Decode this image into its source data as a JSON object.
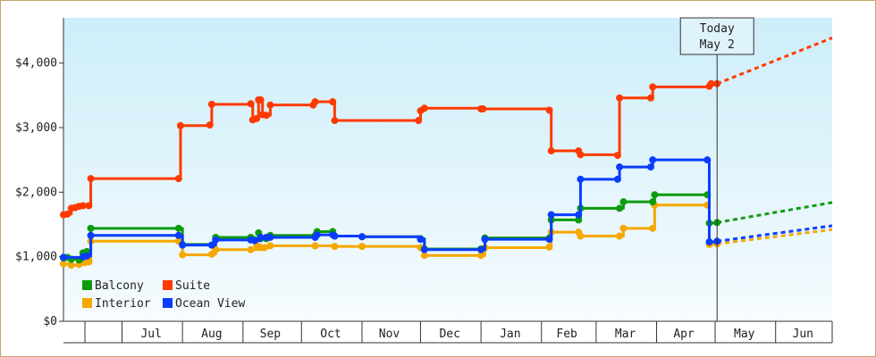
{
  "chart_data": {
    "type": "line",
    "step": true,
    "x_type": "date",
    "x_range": [
      "2024-06-01",
      "2025-06-30"
    ],
    "ylim": [
      0,
      4700
    ],
    "y_ticks": [
      0,
      1000,
      2000,
      3000,
      4000
    ],
    "y_tick_labels": [
      "$0",
      "$1,000",
      "$2,000",
      "$3,000",
      "$4,000"
    ],
    "x_ticks": [
      {
        "label": "Jul",
        "center": "2024-07-16"
      },
      {
        "label": "Aug",
        "center": "2024-08-16"
      },
      {
        "label": "Sep",
        "center": "2024-09-15"
      },
      {
        "label": "Oct",
        "center": "2024-10-16"
      },
      {
        "label": "Nov",
        "center": "2024-11-15"
      },
      {
        "label": "Dec",
        "center": "2024-12-16"
      },
      {
        "label": "Jan",
        "center": "2025-01-16"
      },
      {
        "label": "Feb",
        "center": "2025-02-14"
      },
      {
        "label": "Mar",
        "center": "2025-03-16"
      },
      {
        "label": "Apr",
        "center": "2025-04-15"
      },
      {
        "label": "May",
        "center": "2025-05-16"
      },
      {
        "label": "Jun",
        "center": "2025-06-15"
      }
    ],
    "x_tick_bounds": [
      "2024-06-12",
      "2024-07-01",
      "2024-08-01",
      "2024-09-01",
      "2024-10-01",
      "2024-11-01",
      "2024-12-01",
      "2025-01-01",
      "2025-02-01",
      "2025-03-01",
      "2025-04-01",
      "2025-05-01",
      "2025-06-01",
      "2025-06-30"
    ],
    "today": {
      "date": "2025-05-02",
      "label_line1": "Today",
      "label_line2": "May 2"
    },
    "legend": {
      "position": "bottom-left"
    },
    "grid": false,
    "background_gradient": [
      "#cdeef9",
      "#f6fbfe"
    ],
    "series": [
      {
        "name": "Balcony",
        "color": "#0d9b0d",
        "points": [
          [
            "2024-06-01",
            980
          ],
          [
            "2024-06-03",
            990
          ],
          [
            "2024-06-05",
            960
          ],
          [
            "2024-06-09",
            950
          ],
          [
            "2024-06-11",
            1060
          ],
          [
            "2024-06-13",
            1080
          ],
          [
            "2024-06-15",
            1440
          ],
          [
            "2024-07-30",
            1440
          ],
          [
            "2024-08-01",
            1190
          ],
          [
            "2024-08-16",
            1180
          ],
          [
            "2024-08-18",
            1300
          ],
          [
            "2024-09-05",
            1300
          ],
          [
            "2024-09-07",
            1260
          ],
          [
            "2024-09-09",
            1370
          ],
          [
            "2024-09-10",
            1280
          ],
          [
            "2024-09-13",
            1280
          ],
          [
            "2024-09-15",
            1330
          ],
          [
            "2024-10-08",
            1330
          ],
          [
            "2024-10-09",
            1390
          ],
          [
            "2024-10-17",
            1390
          ],
          [
            "2024-10-18",
            1320
          ],
          [
            "2024-11-01",
            1310
          ],
          [
            "2024-12-01",
            1280
          ],
          [
            "2024-12-03",
            1120
          ],
          [
            "2025-01-01",
            1120
          ],
          [
            "2025-01-03",
            1290
          ],
          [
            "2025-02-05",
            1290
          ],
          [
            "2025-02-06",
            1570
          ],
          [
            "2025-02-20",
            1570
          ],
          [
            "2025-02-21",
            1750
          ],
          [
            "2025-03-13",
            1750
          ],
          [
            "2025-03-15",
            1850
          ],
          [
            "2025-03-30",
            1850
          ],
          [
            "2025-03-31",
            1960
          ],
          [
            "2025-04-27",
            1960
          ],
          [
            "2025-04-28",
            1520
          ],
          [
            "2025-05-02",
            1530
          ]
        ],
        "projection": [
          [
            "2025-05-02",
            1530
          ],
          [
            "2025-06-30",
            1840
          ]
        ]
      },
      {
        "name": "Interior",
        "color": "#f5a800",
        "points": [
          [
            "2024-06-01",
            890
          ],
          [
            "2024-06-05",
            870
          ],
          [
            "2024-06-09",
            880
          ],
          [
            "2024-06-12",
            910
          ],
          [
            "2024-06-14",
            920
          ],
          [
            "2024-06-15",
            1240
          ],
          [
            "2024-07-30",
            1240
          ],
          [
            "2024-08-01",
            1030
          ],
          [
            "2024-08-16",
            1040
          ],
          [
            "2024-08-18",
            1110
          ],
          [
            "2024-09-05",
            1110
          ],
          [
            "2024-09-08",
            1180
          ],
          [
            "2024-09-10",
            1140
          ],
          [
            "2024-09-12",
            1140
          ],
          [
            "2024-09-15",
            1170
          ],
          [
            "2024-10-08",
            1170
          ],
          [
            "2024-10-18",
            1160
          ],
          [
            "2024-11-01",
            1160
          ],
          [
            "2024-12-01",
            1140
          ],
          [
            "2024-12-03",
            1020
          ],
          [
            "2025-01-01",
            1020
          ],
          [
            "2025-01-03",
            1140
          ],
          [
            "2025-02-05",
            1150
          ],
          [
            "2025-02-06",
            1380
          ],
          [
            "2025-02-20",
            1380
          ],
          [
            "2025-02-21",
            1320
          ],
          [
            "2025-03-13",
            1320
          ],
          [
            "2025-03-15",
            1440
          ],
          [
            "2025-03-30",
            1440
          ],
          [
            "2025-03-31",
            1800
          ],
          [
            "2025-04-27",
            1800
          ],
          [
            "2025-04-28",
            1190
          ],
          [
            "2025-05-02",
            1200
          ]
        ],
        "projection": [
          [
            "2025-05-02",
            1200
          ],
          [
            "2025-06-30",
            1420
          ]
        ]
      },
      {
        "name": "Suite",
        "color": "#ff3a00",
        "points": [
          [
            "2024-06-01",
            1650
          ],
          [
            "2024-06-03",
            1660
          ],
          [
            "2024-06-05",
            1750
          ],
          [
            "2024-06-07",
            1760
          ],
          [
            "2024-06-09",
            1780
          ],
          [
            "2024-06-11",
            1790
          ],
          [
            "2024-06-14",
            1790
          ],
          [
            "2024-06-15",
            2210
          ],
          [
            "2024-07-30",
            2210
          ],
          [
            "2024-07-31",
            3030
          ],
          [
            "2024-08-15",
            3040
          ],
          [
            "2024-08-16",
            3360
          ],
          [
            "2024-09-05",
            3370
          ],
          [
            "2024-09-06",
            3120
          ],
          [
            "2024-09-08",
            3140
          ],
          [
            "2024-09-09",
            3430
          ],
          [
            "2024-09-10",
            3430
          ],
          [
            "2024-09-11",
            3200
          ],
          [
            "2024-09-13",
            3190
          ],
          [
            "2024-09-15",
            3350
          ],
          [
            "2024-10-07",
            3350
          ],
          [
            "2024-10-08",
            3400
          ],
          [
            "2024-10-17",
            3400
          ],
          [
            "2024-10-18",
            3110
          ],
          [
            "2024-11-30",
            3110
          ],
          [
            "2024-12-01",
            3260
          ],
          [
            "2024-12-03",
            3300
          ],
          [
            "2025-01-01",
            3290
          ],
          [
            "2025-01-02",
            3290
          ],
          [
            "2025-02-05",
            3270
          ],
          [
            "2025-02-06",
            2640
          ],
          [
            "2025-02-20",
            2640
          ],
          [
            "2025-02-21",
            2580
          ],
          [
            "2025-03-12",
            2570
          ],
          [
            "2025-03-13",
            3460
          ],
          [
            "2025-03-29",
            3460
          ],
          [
            "2025-03-30",
            3630
          ],
          [
            "2025-04-28",
            3640
          ],
          [
            "2025-04-29",
            3680
          ],
          [
            "2025-05-02",
            3680
          ]
        ],
        "projection": [
          [
            "2025-05-02",
            3680
          ],
          [
            "2025-06-30",
            4390
          ]
        ]
      },
      {
        "name": "Ocean View",
        "color": "#0a3cff",
        "points": [
          [
            "2024-06-01",
            990
          ],
          [
            "2024-06-11",
            1000
          ],
          [
            "2024-06-13",
            1010
          ],
          [
            "2024-06-15",
            1330
          ],
          [
            "2024-07-30",
            1330
          ],
          [
            "2024-08-01",
            1180
          ],
          [
            "2024-08-16",
            1180
          ],
          [
            "2024-08-18",
            1260
          ],
          [
            "2024-09-05",
            1260
          ],
          [
            "2024-09-07",
            1250
          ],
          [
            "2024-09-10",
            1300
          ],
          [
            "2024-09-13",
            1300
          ],
          [
            "2024-09-15",
            1300
          ],
          [
            "2024-10-08",
            1300
          ],
          [
            "2024-10-09",
            1340
          ],
          [
            "2024-10-17",
            1340
          ],
          [
            "2024-10-18",
            1320
          ],
          [
            "2024-11-01",
            1310
          ],
          [
            "2024-12-01",
            1270
          ],
          [
            "2024-12-03",
            1110
          ],
          [
            "2025-01-01",
            1110
          ],
          [
            "2025-01-03",
            1270
          ],
          [
            "2025-02-05",
            1270
          ],
          [
            "2025-02-06",
            1650
          ],
          [
            "2025-02-20",
            1650
          ],
          [
            "2025-02-21",
            2200
          ],
          [
            "2025-03-12",
            2200
          ],
          [
            "2025-03-13",
            2390
          ],
          [
            "2025-03-29",
            2390
          ],
          [
            "2025-03-30",
            2500
          ],
          [
            "2025-04-27",
            2500
          ],
          [
            "2025-04-28",
            1230
          ],
          [
            "2025-05-02",
            1240
          ]
        ],
        "projection": [
          [
            "2025-05-02",
            1240
          ],
          [
            "2025-06-30",
            1480
          ]
        ]
      }
    ],
    "legend_order": [
      "Balcony",
      "Suite",
      "Interior",
      "Ocean View"
    ]
  }
}
